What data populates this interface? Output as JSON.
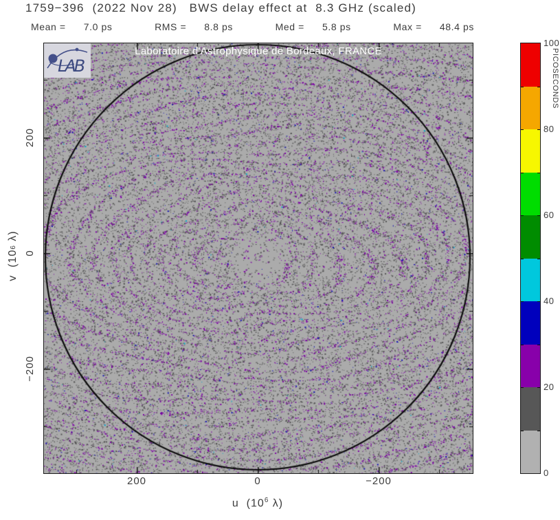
{
  "header": {
    "title": "1759−396  (2022 Nov 28)   BWS delay effect at  8.3 GHz (scaled)",
    "stats": [
      {
        "label": "Mean =",
        "value": "7.0 ps"
      },
      {
        "label": "RMS =",
        "value": "8.8 ps"
      },
      {
        "label": "Med =",
        "value": "5.8 ps"
      },
      {
        "label": "Max =",
        "value": "48.4 ps"
      }
    ]
  },
  "plot": {
    "overlay_credit": "Laboratoire d'Astrophysique de Bordeaux, FRANCE",
    "logo_text": "LAB",
    "background": "#ababab",
    "frame_color": "#1c1c1c",
    "circle_color": "#0d0d0d",
    "texture_colors": {
      "dark": "#555555",
      "purple": "#7d00a6",
      "blue": "#1414b4",
      "cyan": "#00aacc"
    },
    "xaxis": {
      "label_prefix": "u  (10",
      "label_exp": "6",
      "label_suffix": " λ)",
      "ticks": [
        "200",
        "0",
        "−200"
      ]
    },
    "yaxis": {
      "label_prefix": "v  (10",
      "label_exp": "6",
      "label_suffix": " λ)",
      "ticks": [
        "200",
        "0",
        "−200"
      ]
    }
  },
  "colorbar": {
    "title": "PICOSECONDS",
    "tick_labels": [
      "100",
      "80",
      "60",
      "40",
      "20",
      "0"
    ],
    "segments_top_to_bottom": [
      "#ee0000",
      "#f5a700",
      "#f7f700",
      "#00dd00",
      "#008c00",
      "#00c8dd",
      "#0000bd",
      "#8800aa",
      "#575757",
      "#b1b1b1"
    ]
  },
  "chart_data": {
    "type": "scatter",
    "title": "1759−396 (2022 Nov 28) BWS delay effect at 8.3 GHz (scaled)",
    "xlabel": "u (10^6 λ)",
    "ylabel": "v (10^6 λ)",
    "x_ticks": [
      200,
      0,
      -200
    ],
    "y_ticks": [
      200,
      0,
      -200
    ],
    "xlim": [
      355,
      -355
    ],
    "ylim": [
      -380,
      363
    ],
    "x_axis_reversed": true,
    "grid": false,
    "boundary_circle_radius_1e6_lambda": 352,
    "colorbar": {
      "label": "PICOSECONDS",
      "range": [
        0,
        100
      ],
      "n_segments": 10,
      "tick_labels": [
        100,
        80,
        60,
        40,
        20,
        0
      ],
      "segment_colors_low_to_high": [
        "#b1b1b1",
        "#575757",
        "#8800aa",
        "#0000bd",
        "#00c8dd",
        "#008c00",
        "#00dd00",
        "#f7f700",
        "#f5a700",
        "#ee0000"
      ]
    },
    "stats": {
      "mean_ps": 7.0,
      "rms_ps": 8.8,
      "median_ps": 5.8,
      "max_ps": 48.4
    },
    "description": "Dense stochastic UV-coverage point cloud; most points 0–20 ps (light/dark gray), diagonal elliptical track streaks at 20–40 ps (purple/blue), bounded by a circle of ~350×10^6 λ."
  }
}
